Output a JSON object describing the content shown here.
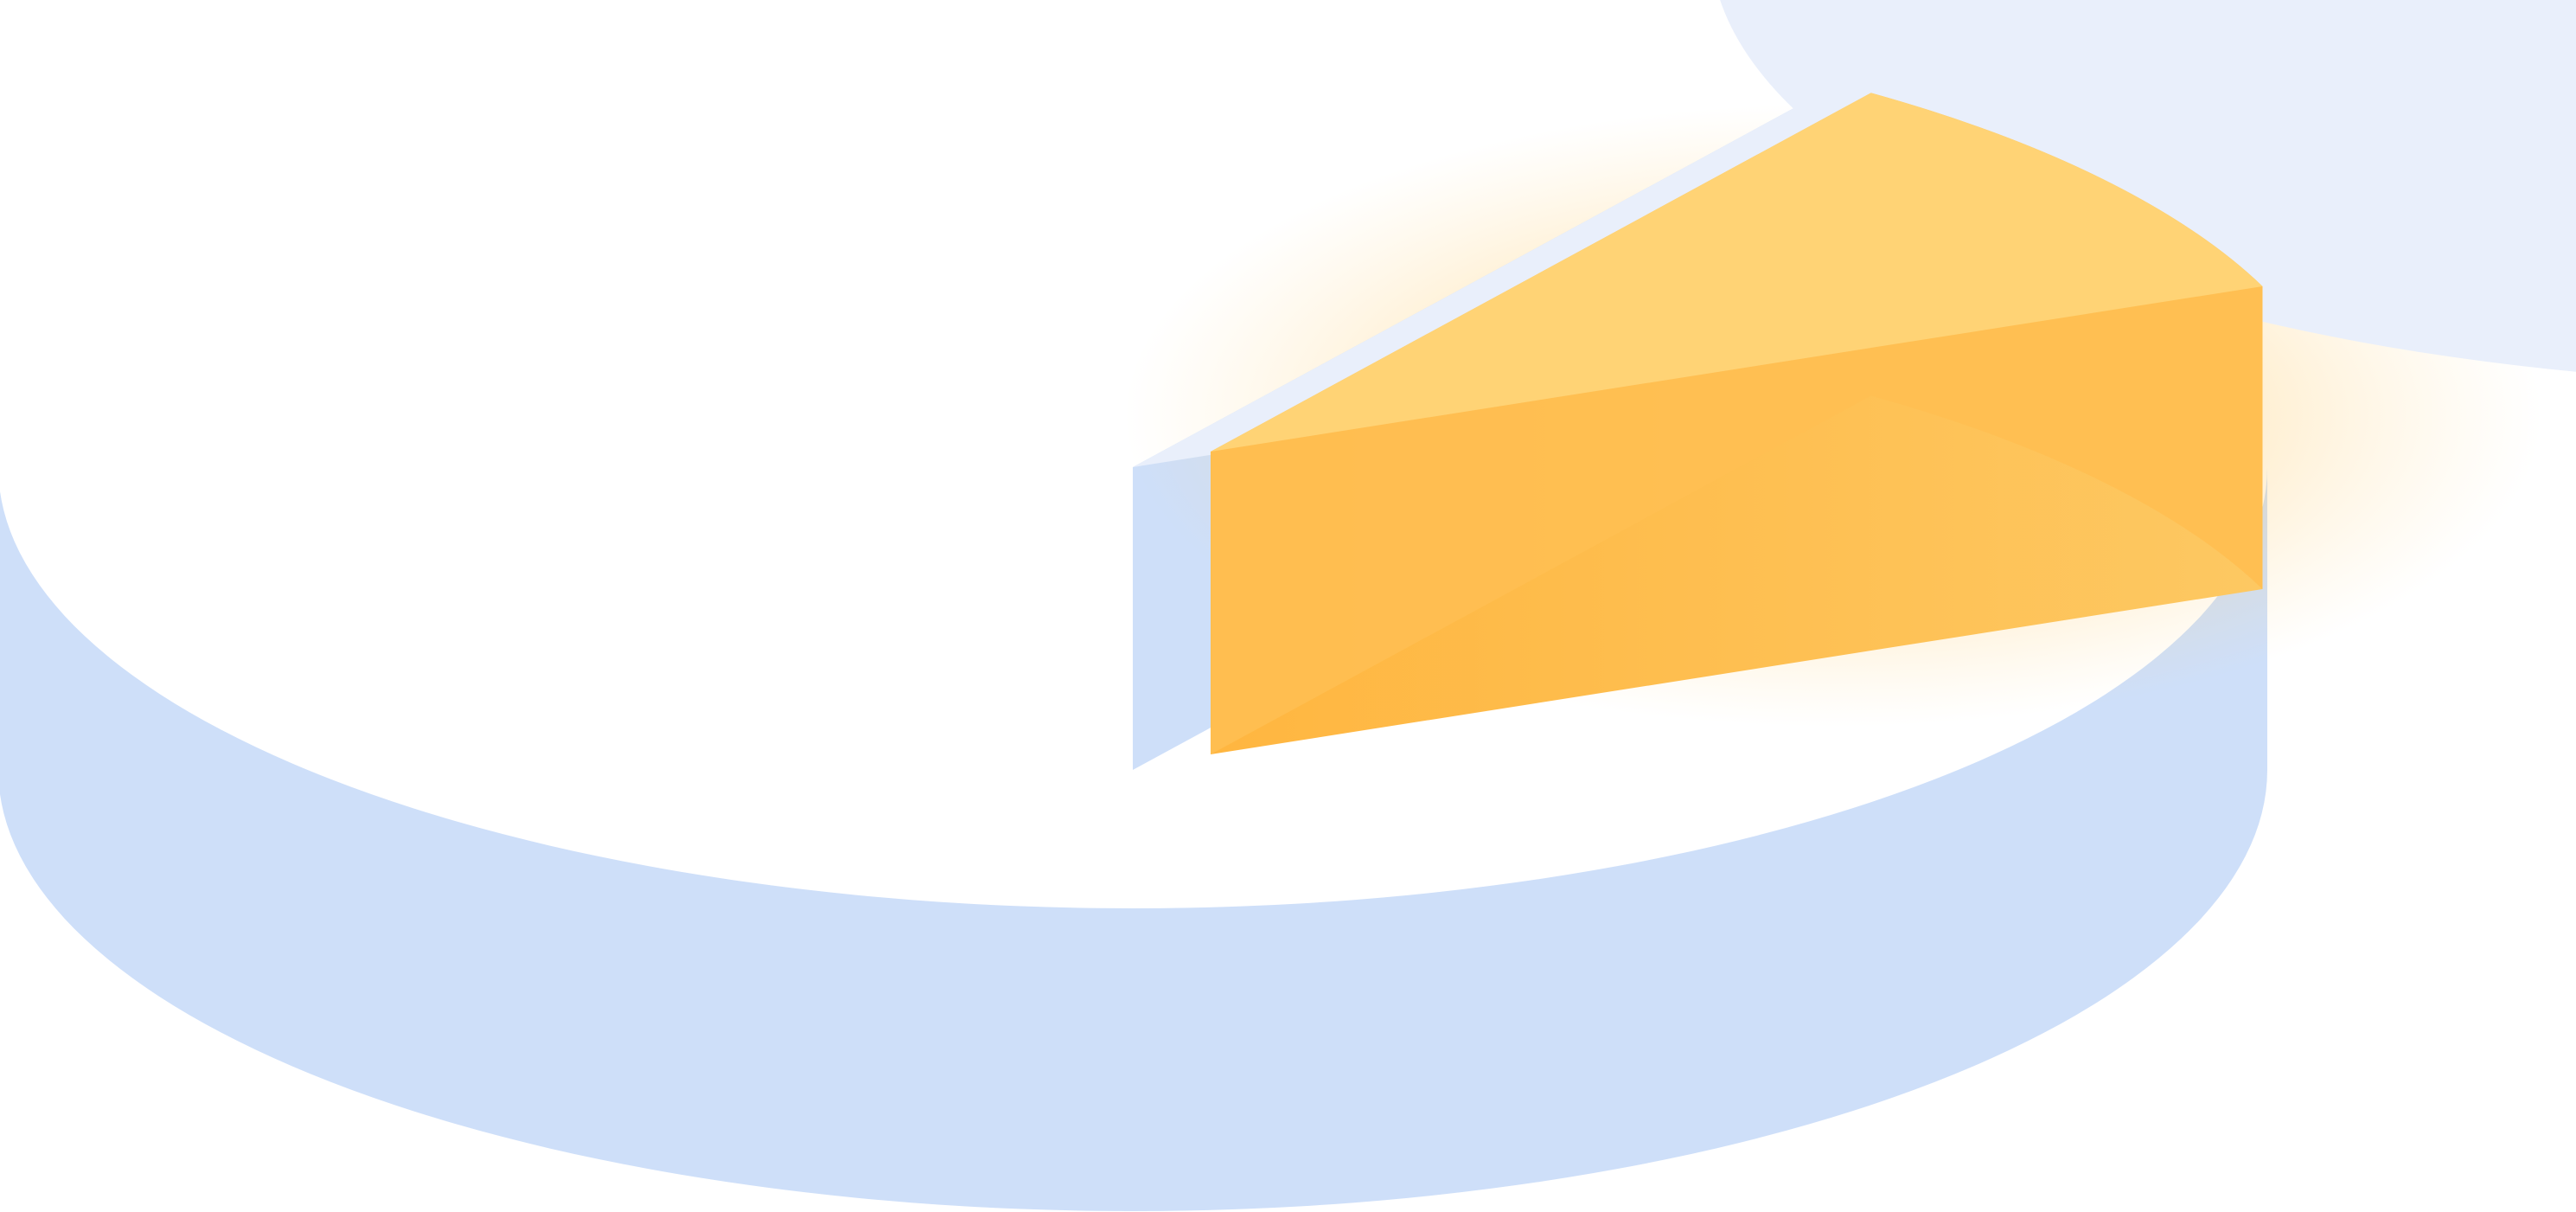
{
  "chart_data": {
    "type": "pie",
    "style": "3d-exploded",
    "title": "",
    "slices": [
      {
        "name": "",
        "value": 91,
        "color": "#E9EFFB",
        "side_color": "#CEDFF9",
        "exploded": false
      },
      {
        "name": "",
        "value": 9,
        "color": "#FFD375",
        "side_color": "#FFBF52",
        "exploded": true,
        "glow": true
      }
    ],
    "legend": "none",
    "data_labels": "none"
  }
}
